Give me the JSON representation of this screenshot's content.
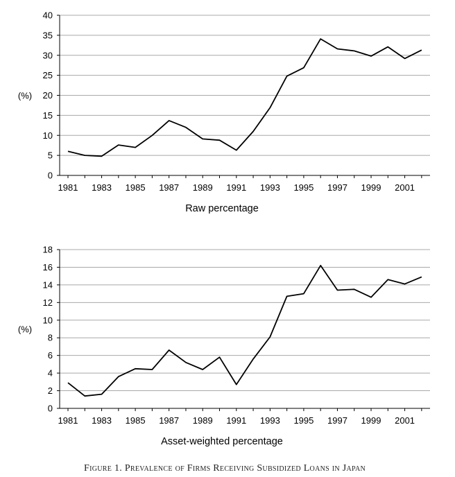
{
  "figure": {
    "caption": "Figure 1. Prevalence of Firms Receiving Subsidized Loans in Japan"
  },
  "chart_data": [
    {
      "type": "line",
      "xlabel": "Raw percentage",
      "ylabel": "(%)",
      "ylim": [
        0,
        40
      ],
      "yticks": [
        0,
        5,
        10,
        15,
        20,
        25,
        30,
        35,
        40
      ],
      "xticks": [
        "1981",
        "1983",
        "1985",
        "1987",
        "1989",
        "1991",
        "1993",
        "1995",
        "1997",
        "1999",
        "2001"
      ],
      "grid": "horizontal",
      "series": [
        {
          "x": [
            1981,
            1982,
            1983,
            1984,
            1985,
            1986,
            1987,
            1988,
            1989,
            1990,
            1991,
            1992,
            1993,
            1994,
            1995,
            1996,
            1997,
            1998,
            1999,
            2000,
            2001,
            2002
          ],
          "values": [
            6.0,
            5.0,
            4.8,
            7.6,
            7.0,
            10.0,
            13.7,
            12.0,
            9.1,
            8.8,
            6.3,
            11.0,
            16.9,
            24.8,
            26.9,
            34.1,
            31.6,
            31.1,
            29.8,
            32.1,
            29.2,
            31.3
          ]
        }
      ]
    },
    {
      "type": "line",
      "xlabel": "Asset-weighted percentage",
      "ylabel": "(%)",
      "ylim": [
        0,
        18
      ],
      "yticks": [
        0,
        2,
        4,
        6,
        8,
        10,
        12,
        14,
        16,
        18
      ],
      "xticks": [
        "1981",
        "1983",
        "1985",
        "1987",
        "1989",
        "1991",
        "1993",
        "1995",
        "1997",
        "1999",
        "2001"
      ],
      "grid": "horizontal",
      "series": [
        {
          "x": [
            1981,
            1982,
            1983,
            1984,
            1985,
            1986,
            1987,
            1988,
            1989,
            1990,
            1991,
            1992,
            1993,
            1994,
            1995,
            1996,
            1997,
            1998,
            1999,
            2000,
            2001,
            2002
          ],
          "values": [
            2.9,
            1.4,
            1.6,
            3.6,
            4.5,
            4.4,
            6.6,
            5.2,
            4.4,
            5.8,
            2.7,
            5.6,
            8.1,
            12.7,
            13.0,
            16.2,
            13.4,
            13.5,
            12.6,
            14.6,
            14.1,
            14.9
          ]
        }
      ]
    }
  ]
}
